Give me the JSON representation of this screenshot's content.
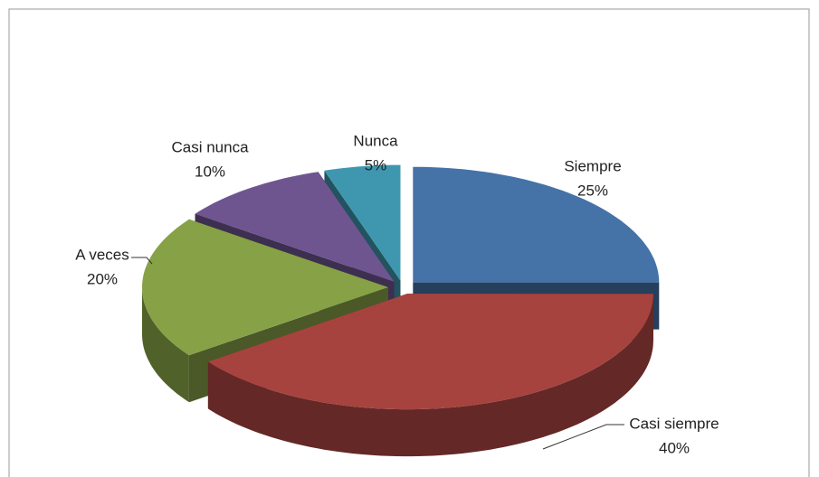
{
  "chart_data": {
    "type": "pie",
    "categories": [
      "Siempre",
      "Casi siempre",
      "A veces",
      "Casi nunca",
      "Nunca"
    ],
    "values": [
      25,
      40,
      20,
      10,
      5
    ],
    "value_labels": [
      "25%",
      "40%",
      "20%",
      "10%",
      "5%"
    ],
    "colors": [
      "#4572a7",
      "#a6433f",
      "#87a146",
      "#6f5590",
      "#3e97ae"
    ]
  }
}
